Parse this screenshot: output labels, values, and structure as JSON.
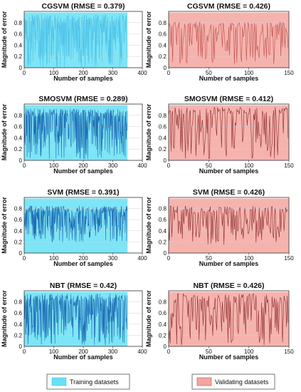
{
  "chart_data": [
    {
      "type": "area",
      "title": "CGSVM (RMSE = 0.379)",
      "xlabel": "Number of samples",
      "ylabel": "Magnitude of error",
      "xlim": [
        0,
        400
      ],
      "ylim": [
        0,
        1
      ],
      "xticks": [
        "0",
        "100",
        "200",
        "300",
        "400"
      ],
      "yticks": [
        "0",
        "0.2",
        "0.4",
        "0.6",
        "0.8"
      ],
      "series": [
        {
          "name": "Training datasets",
          "n": 350,
          "range": [
            0,
            0.95
          ],
          "color": "#4fc3e8",
          "fill": "#66e0f5"
        }
      ]
    },
    {
      "type": "area",
      "title": "CGSVM (RMSE = 0.426)",
      "xlabel": "Number of samples",
      "ylabel": "Magnitude of error",
      "xlim": [
        0,
        150
      ],
      "ylim": [
        0,
        1
      ],
      "xticks": [
        "0",
        "50",
        "100",
        "150"
      ],
      "yticks": [
        "0",
        "0.2",
        "0.4",
        "0.6",
        "0.8"
      ],
      "series": [
        {
          "name": "Validating datasets",
          "n": 150,
          "range": [
            0.05,
            0.82
          ],
          "color": "#c0504d",
          "fill": "#f4a6a0"
        }
      ]
    },
    {
      "type": "area",
      "title": "SMOSVM (RMSE = 0.289)",
      "xlabel": "Number of samples",
      "ylabel": "Magnitude of error",
      "xlim": [
        0,
        400
      ],
      "ylim": [
        0,
        1
      ],
      "xticks": [
        "0",
        "100",
        "200",
        "300",
        "400"
      ],
      "yticks": [
        "0",
        "0.2",
        "0.4",
        "0.6",
        "0.8"
      ],
      "series": [
        {
          "name": "Training datasets",
          "n": 350,
          "range": [
            0.02,
            0.92
          ],
          "color": "#1f6fb5",
          "fill": "#66e0f5"
        }
      ]
    },
    {
      "type": "area",
      "title": "SMOSVM (RMSE = 0.412)",
      "xlabel": "Number of samples",
      "ylabel": "Magnitude of error",
      "xlim": [
        0,
        150
      ],
      "ylim": [
        0,
        1
      ],
      "xticks": [
        "0",
        "50",
        "100",
        "150"
      ],
      "yticks": [
        "0",
        "0.2",
        "0.4",
        "0.6",
        "0.8"
      ],
      "series": [
        {
          "name": "Validating datasets",
          "n": 150,
          "range": [
            0.02,
            0.95
          ],
          "color": "#8b2a2a",
          "fill": "#f4a6a0"
        }
      ]
    },
    {
      "type": "area",
      "title": "SVM (RMSE = 0.391)",
      "xlabel": "Number of samples",
      "ylabel": "Magnitude of error",
      "xlim": [
        0,
        400
      ],
      "ylim": [
        0,
        1
      ],
      "xticks": [
        "0",
        "100",
        "200",
        "300",
        "400"
      ],
      "yticks": [
        "0",
        "0.2",
        "0.4",
        "0.6",
        "0.8"
      ],
      "series": [
        {
          "name": "Training datasets",
          "n": 350,
          "range": [
            0.18,
            0.85
          ],
          "color": "#1f6fb5",
          "fill": "#66e0f5"
        }
      ]
    },
    {
      "type": "area",
      "title": "SVM (RMSE = 0.426)",
      "xlabel": "Number of samples",
      "ylabel": "Magnitude of error",
      "xlim": [
        0,
        150
      ],
      "ylim": [
        0,
        1
      ],
      "xticks": [
        "0",
        "50",
        "100",
        "150"
      ],
      "yticks": [
        "0",
        "0.2",
        "0.4",
        "0.6",
        "0.8"
      ],
      "series": [
        {
          "name": "Validating datasets",
          "n": 150,
          "range": [
            0.15,
            0.85
          ],
          "color": "#8b2a2a",
          "fill": "#f4a6a0"
        }
      ]
    },
    {
      "type": "area",
      "title": "NBT (RMSE = 0.42)",
      "xlabel": "Number of samples",
      "ylabel": "Magnitude of error",
      "xlim": [
        0,
        400
      ],
      "ylim": [
        0,
        1
      ],
      "xticks": [
        "0",
        "100",
        "200",
        "300",
        "400"
      ],
      "yticks": [
        "0",
        "0.2",
        "0.4",
        "0.6",
        "0.8"
      ],
      "series": [
        {
          "name": "Training datasets",
          "n": 350,
          "range": [
            0.02,
            0.95
          ],
          "color": "#1f6fb5",
          "fill": "#66e0f5"
        }
      ]
    },
    {
      "type": "area",
      "title": "NBT (RMSE = 0.426)",
      "xlabel": "Number of samples",
      "ylabel": "Magnitude of error",
      "xlim": [
        0,
        150
      ],
      "ylim": [
        0,
        1
      ],
      "xticks": [
        "0",
        "50",
        "100",
        "150"
      ],
      "yticks": [
        "0",
        "0.2",
        "0.4",
        "0.6",
        "0.8"
      ],
      "series": [
        {
          "name": "Validating datasets",
          "n": 150,
          "range": [
            0.02,
            0.95
          ],
          "color": "#8b2a2a",
          "fill": "#f4a6a0"
        }
      ]
    }
  ],
  "legend": {
    "training": {
      "label": "Training datasets",
      "color": "#66e0f5"
    },
    "validating": {
      "label": "Validating datasets",
      "color": "#f4a6a0"
    }
  }
}
